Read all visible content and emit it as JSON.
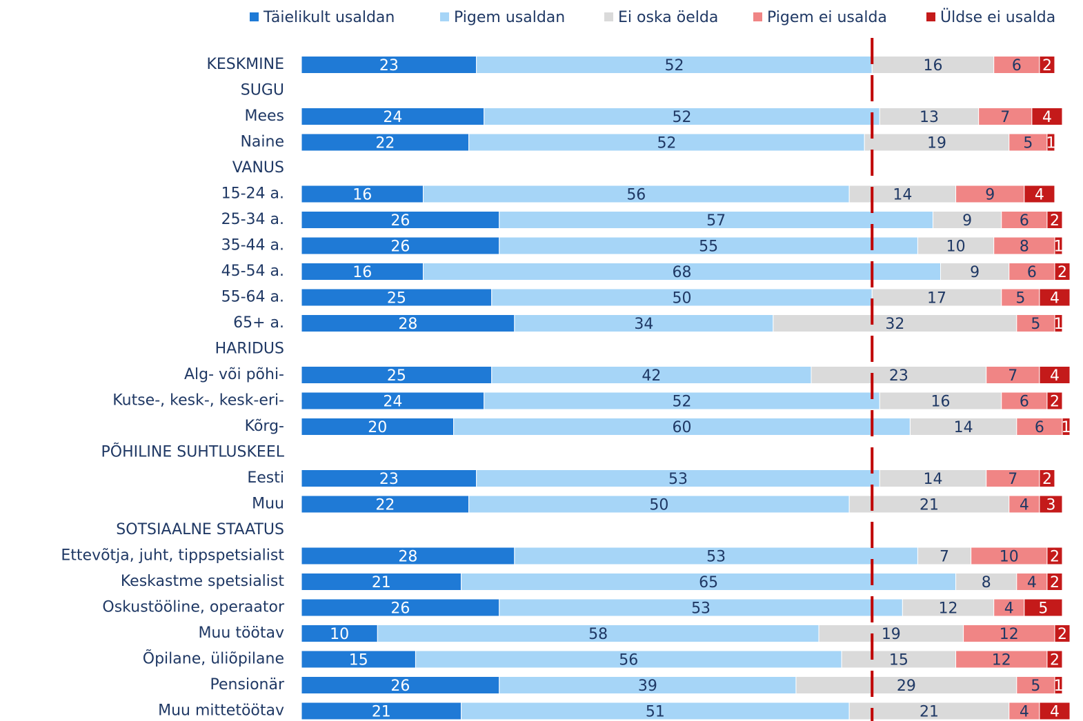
{
  "chart_data": {
    "type": "stacked-bar-horizontal",
    "categories": [
      "KESKMINE",
      "SUGU",
      "Mees",
      "Naine",
      "VANUS",
      "15-24 a.",
      "25-34 a.",
      "35-44 a.",
      "45-54 a.",
      "55-64 a.",
      "65+ a.",
      "HARIDUS",
      "Alg- või põhi-",
      "Kutse-, kesk-, kesk-eri-",
      "Kõrg-",
      "PÕHILINE SUHTLUSKEEL",
      "Eesti",
      "Muu",
      "SOTSIAALNE STAATUS",
      "Ettevõtja, juht, tippspetsialist",
      "Keskastme spetsialist",
      "Oskustööline, operaator",
      "Muu töötav",
      "Õpilane, üliõpilane",
      "Pensionär",
      "Muu mittetöötav"
    ],
    "series": [
      {
        "name": "Täielikult usaldan",
        "color": "#1f7ad6",
        "values": [
          23,
          null,
          24,
          22,
          null,
          16,
          26,
          26,
          16,
          25,
          28,
          null,
          25,
          24,
          20,
          null,
          23,
          22,
          null,
          28,
          21,
          26,
          10,
          15,
          26,
          21
        ]
      },
      {
        "name": "Pigem usaldan",
        "color": "#a6d5f7",
        "values": [
          52,
          null,
          52,
          52,
          null,
          56,
          57,
          55,
          68,
          50,
          34,
          null,
          42,
          52,
          60,
          null,
          53,
          50,
          null,
          53,
          65,
          53,
          58,
          56,
          39,
          51
        ]
      },
      {
        "name": "Ei oska öelda",
        "color": "#dadada",
        "values": [
          16,
          null,
          13,
          19,
          null,
          14,
          9,
          10,
          9,
          17,
          32,
          null,
          23,
          16,
          14,
          null,
          14,
          21,
          null,
          7,
          8,
          12,
          19,
          15,
          29,
          21
        ]
      },
      {
        "name": "Pigem ei usalda",
        "color": "#f08585",
        "values": [
          6,
          null,
          7,
          5,
          null,
          9,
          6,
          8,
          6,
          5,
          5,
          null,
          7,
          6,
          6,
          null,
          7,
          4,
          null,
          10,
          4,
          4,
          12,
          12,
          5,
          4
        ]
      },
      {
        "name": "Üldse ei usalda",
        "color": "#c41a1a",
        "values": [
          2,
          null,
          4,
          1,
          null,
          4,
          2,
          1,
          2,
          4,
          1,
          null,
          4,
          2,
          1,
          null,
          2,
          3,
          null,
          2,
          2,
          5,
          2,
          2,
          1,
          4
        ]
      }
    ],
    "xlim": [
      0,
      100
    ],
    "reference_line": {
      "x": 75,
      "color": "#c00000"
    }
  }
}
